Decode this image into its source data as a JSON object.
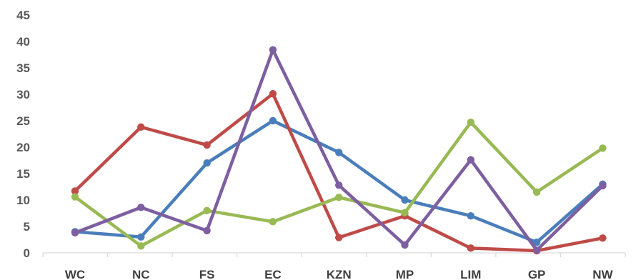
{
  "chart_data": {
    "type": "line",
    "categories": [
      "WC",
      "NC",
      "FS",
      "EC",
      "KZN",
      "MP",
      "LIM",
      "GP",
      "NW"
    ],
    "ylim": [
      0,
      45
    ],
    "yticks": [
      "0",
      "5",
      "10",
      "15",
      "20",
      "25",
      "30",
      "35",
      "40",
      "45"
    ],
    "grid": false,
    "series": [
      {
        "color": "#4a7ebb",
        "values": [
          4,
          3,
          17,
          25,
          19,
          10,
          7,
          2,
          13
        ]
      },
      {
        "color": "#be4b48",
        "values": [
          11.7,
          23.8,
          20.4,
          30.1,
          2.9,
          7,
          0.9,
          0.4,
          2.8
        ]
      },
      {
        "color": "#98b954",
        "values": [
          10.6,
          1.3,
          8,
          5.9,
          10.5,
          7.6,
          24.7,
          11.5,
          19.8
        ]
      },
      {
        "color": "#7d5fa0",
        "values": [
          3.8,
          8.6,
          4.2,
          38.4,
          12.8,
          1.5,
          17.6,
          0.5,
          12.7
        ]
      }
    ]
  }
}
